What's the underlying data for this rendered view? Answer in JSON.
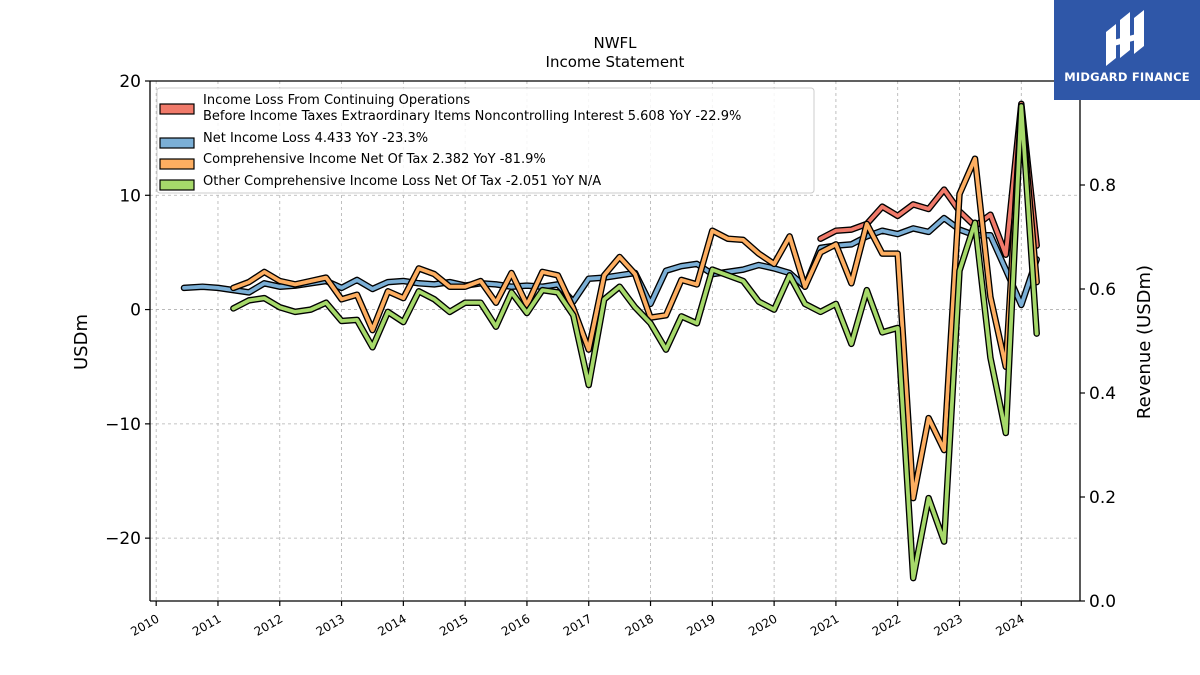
{
  "header": {
    "ticker": "NWFL",
    "subtitle": "Income Statement"
  },
  "brand": {
    "name": "MIDGARD FINANCE",
    "color": "#2f57a8"
  },
  "chart_data": {
    "type": "line",
    "title": "NWFL",
    "subtitle": "Income Statement",
    "ylabel": "USDm",
    "y2label": "Revenue (USDm)",
    "ylim": [
      -25.5,
      20
    ],
    "y2lim": [
      0.0,
      1.0
    ],
    "xlim": [
      2009.9,
      2024.95
    ],
    "yticks": [
      20,
      10,
      0,
      -10,
      -20
    ],
    "ytick_labels": [
      "20",
      "10",
      "0",
      "−10",
      "−20"
    ],
    "y2ticks": [
      0.0,
      0.2,
      0.4,
      0.6,
      0.8
    ],
    "y2tick_labels": [
      "0.0",
      "0.2",
      "0.4",
      "0.6",
      "0.8"
    ],
    "xticks": [
      2010,
      2011,
      2012,
      2013,
      2014,
      2015,
      2016,
      2017,
      2018,
      2019,
      2020,
      2021,
      2022,
      2023,
      2024
    ],
    "xtick_labels": [
      "2010",
      "2011",
      "2012",
      "2013",
      "2014",
      "2015",
      "2016",
      "2017",
      "2018",
      "2019",
      "2020",
      "2021",
      "2022",
      "2023",
      "2024"
    ],
    "grid": true,
    "legend_position": "top-left",
    "legend": [
      {
        "line1": "Income Loss From Continuing Operations",
        "line2": "Before Income Taxes Extraordinary Items Noncontrolling Interest  5.608 YoY -22.9%",
        "color": "#f07a6a"
      },
      {
        "line1": "Net Income Loss  4.433 YoY -23.3%",
        "color": "#7bafd6"
      },
      {
        "line1": "Comprehensive Income Net Of Tax  2.382 YoY -81.9%",
        "color": "#fdae61"
      },
      {
        "line1": "Other Comprehensive Income Loss Net Of Tax  -2.051 YoY N/A",
        "color": "#a6d96a"
      }
    ],
    "series": [
      {
        "name": "Income Loss From Continuing Operations Before Income Taxes Extraordinary Items Noncontrolling Interest",
        "color": "#f07a6a",
        "x": [
          2020.75,
          2021.0,
          2021.25,
          2021.5,
          2021.75,
          2022.0,
          2022.25,
          2022.5,
          2022.75,
          2023.0,
          2023.25,
          2023.5,
          2023.75,
          2024.0,
          2024.25
        ],
        "y": [
          6.2,
          6.9,
          7.0,
          7.5,
          9.0,
          8.2,
          9.2,
          8.8,
          10.5,
          8.6,
          7.3,
          8.3,
          4.8,
          18.0,
          5.6
        ]
      },
      {
        "name": "Net Income Loss",
        "color": "#7bafd6",
        "x": [
          2010.45,
          2010.75,
          2011.0,
          2011.25,
          2011.5,
          2011.75,
          2012.0,
          2012.25,
          2012.5,
          2012.75,
          2013.0,
          2013.25,
          2013.5,
          2013.75,
          2014.0,
          2014.25,
          2014.5,
          2014.75,
          2015.0,
          2015.25,
          2015.5,
          2015.75,
          2016.0,
          2016.25,
          2016.5,
          2016.75,
          2017.0,
          2017.25,
          2017.5,
          2017.75,
          2018.0,
          2018.25,
          2018.5,
          2018.75,
          2019.0,
          2019.25,
          2019.5,
          2019.75,
          2020.0,
          2020.25,
          2020.5,
          2020.75,
          2021.0,
          2021.25,
          2021.5,
          2021.75,
          2022.0,
          2022.25,
          2022.5,
          2022.75,
          2023.0,
          2023.25,
          2023.5,
          2023.75,
          2024.0,
          2024.25
        ],
        "y": [
          1.9,
          2.0,
          1.9,
          1.7,
          1.5,
          2.3,
          2.0,
          2.1,
          2.3,
          2.5,
          1.9,
          2.6,
          1.8,
          2.4,
          2.5,
          2.3,
          2.2,
          2.4,
          2.1,
          2.3,
          2.2,
          2.0,
          2.1,
          2.0,
          2.2,
          0.7,
          2.7,
          2.8,
          3.0,
          3.2,
          0.5,
          3.4,
          3.8,
          4.0,
          3.1,
          3.3,
          3.5,
          3.9,
          3.6,
          3.2,
          2.0,
          5.4,
          5.6,
          5.7,
          6.4,
          6.9,
          6.6,
          7.1,
          6.8,
          8.0,
          7.0,
          6.5,
          6.5,
          3.5,
          0.4,
          4.4
        ]
      },
      {
        "name": "Comprehensive Income Net Of Tax",
        "color": "#fdae61",
        "x": [
          2011.25,
          2011.5,
          2011.75,
          2012.0,
          2012.25,
          2012.5,
          2012.75,
          2013.0,
          2013.25,
          2013.5,
          2013.75,
          2014.0,
          2014.25,
          2014.5,
          2014.75,
          2015.0,
          2015.25,
          2015.5,
          2015.75,
          2016.0,
          2016.25,
          2016.5,
          2016.75,
          2017.0,
          2017.25,
          2017.5,
          2017.75,
          2018.0,
          2018.25,
          2018.5,
          2018.75,
          2019.0,
          2019.25,
          2019.5,
          2019.75,
          2020.0,
          2020.25,
          2020.5,
          2020.75,
          2021.0,
          2021.25,
          2021.5,
          2021.75,
          2022.0,
          2022.25,
          2022.5,
          2022.75,
          2023.0,
          2023.25,
          2023.5,
          2023.75,
          2024.0,
          2024.25
        ],
        "y": [
          1.9,
          2.4,
          3.3,
          2.5,
          2.2,
          2.5,
          2.8,
          0.9,
          1.3,
          -1.8,
          1.6,
          1.0,
          3.6,
          3.1,
          2.0,
          2.0,
          2.5,
          0.6,
          3.2,
          0.4,
          3.3,
          3.0,
          0.1,
          -3.5,
          3.0,
          4.6,
          3.1,
          -0.7,
          -0.5,
          2.6,
          2.2,
          6.9,
          6.2,
          6.1,
          4.9,
          4.0,
          6.4,
          2.0,
          5.0,
          5.7,
          2.3,
          7.5,
          4.9,
          4.9,
          -16.5,
          -9.5,
          -12.3,
          10.1,
          13.2,
          1.1,
          -5.0,
          17.8,
          2.4
        ]
      },
      {
        "name": "Other Comprehensive Income Loss Net Of Tax",
        "color": "#a6d96a",
        "x": [
          2011.25,
          2011.5,
          2011.75,
          2012.0,
          2012.25,
          2012.5,
          2012.75,
          2013.0,
          2013.25,
          2013.5,
          2013.75,
          2014.0,
          2014.25,
          2014.5,
          2014.75,
          2015.0,
          2015.25,
          2015.5,
          2015.75,
          2016.0,
          2016.25,
          2016.5,
          2016.75,
          2017.0,
          2017.25,
          2017.5,
          2017.75,
          2018.0,
          2018.25,
          2018.5,
          2018.75,
          2019.0,
          2019.25,
          2019.5,
          2019.75,
          2020.0,
          2020.25,
          2020.5,
          2020.75,
          2021.0,
          2021.25,
          2021.5,
          2021.75,
          2022.0,
          2022.25,
          2022.5,
          2022.75,
          2023.0,
          2023.25,
          2023.5,
          2023.75,
          2024.0,
          2024.25
        ],
        "y": [
          0.1,
          0.8,
          1.0,
          0.2,
          -0.2,
          0.0,
          0.6,
          -1.0,
          -0.9,
          -3.3,
          -0.2,
          -1.1,
          1.6,
          0.9,
          -0.2,
          0.6,
          0.6,
          -1.5,
          1.5,
          -0.3,
          1.7,
          1.5,
          -0.5,
          -6.6,
          0.9,
          2.0,
          0.2,
          -1.2,
          -3.5,
          -0.6,
          -1.2,
          3.5,
          3.0,
          2.5,
          0.7,
          0.0,
          3.0,
          0.5,
          -0.2,
          0.5,
          -3.0,
          1.7,
          -2.0,
          -1.6,
          -23.5,
          -16.5,
          -20.3,
          3.4,
          7.6,
          -4.2,
          -10.8,
          17.8,
          -2.1
        ]
      }
    ]
  }
}
